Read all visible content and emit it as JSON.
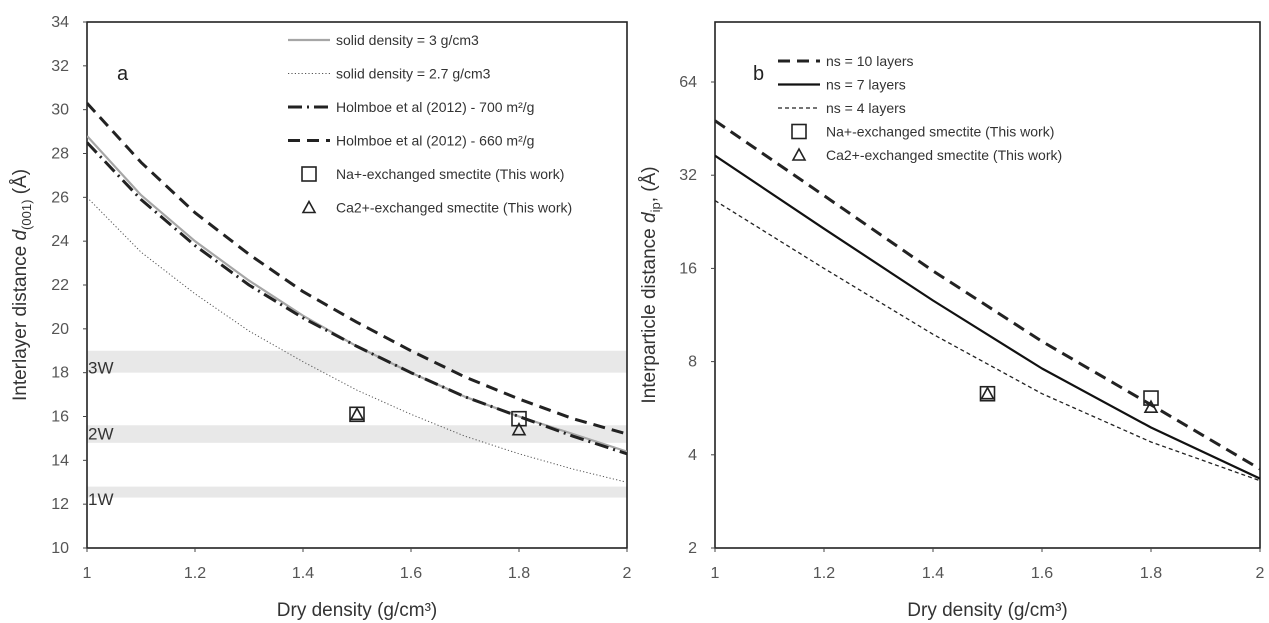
{
  "chart_data": [
    {
      "type": "line",
      "panel_label": "a",
      "xlabel": "Dry density (g/cm³)",
      "ylabel_parts": [
        "Interlayer distance ",
        "d",
        "(001)",
        " (Å)"
      ],
      "xlim": [
        1,
        2
      ],
      "ylim": [
        10,
        34
      ],
      "xticks": [
        1,
        1.2,
        1.4,
        1.6,
        1.8,
        2
      ],
      "xtick_labels": [
        "1",
        "1.2",
        "1.4",
        "1.6",
        "1.8",
        "2"
      ],
      "yticks": [
        10,
        12,
        14,
        16,
        18,
        20,
        22,
        24,
        26,
        28,
        30,
        32,
        34
      ],
      "ytick_labels": [
        "10",
        "12",
        "14",
        "16",
        "18",
        "20",
        "22",
        "24",
        "26",
        "28",
        "30",
        "32",
        "34"
      ],
      "legend_position": "top-right",
      "bands": [
        {
          "label": "3W",
          "range": [
            18,
            19
          ],
          "label_y": 18
        },
        {
          "label": "2W",
          "range": [
            14.8,
            15.6
          ],
          "label_y": 15
        },
        {
          "label": "1W",
          "range": [
            12.3,
            12.8
          ],
          "label_y": 12
        }
      ],
      "series": [
        {
          "name": "solid density = 3 g/cm3",
          "style": "solid-gray",
          "x": [
            1,
            1.1,
            1.2,
            1.3,
            1.4,
            1.5,
            1.6,
            1.7,
            1.8,
            1.9,
            2
          ],
          "y": [
            28.8,
            26.1,
            24,
            22.2,
            20.6,
            19.2,
            18,
            16.9,
            16,
            15.2,
            14.4
          ]
        },
        {
          "name": "solid density = 2.7 g/cm3",
          "style": "dotted",
          "x": [
            1,
            1.1,
            1.2,
            1.3,
            1.4,
            1.5,
            1.6,
            1.7,
            1.8,
            1.9,
            2
          ],
          "y": [
            26,
            23.5,
            21.6,
            19.9,
            18.5,
            17.2,
            16.1,
            15.1,
            14.3,
            13.6,
            13
          ]
        },
        {
          "name": "Holmboe et al (2012) - 700 m²/g",
          "style": "dashdot-thick",
          "x": [
            1,
            1.1,
            1.2,
            1.3,
            1.4,
            1.5,
            1.6,
            1.7,
            1.8,
            1.9,
            2
          ],
          "y": [
            28.5,
            25.9,
            23.8,
            22,
            20.5,
            19.2,
            18,
            16.9,
            16,
            15.1,
            14.3
          ]
        },
        {
          "name": "Holmboe et al (2012) - 660 m²/g",
          "style": "dashed-thick",
          "x": [
            1,
            1.1,
            1.2,
            1.3,
            1.4,
            1.5,
            1.6,
            1.7,
            1.8,
            1.9,
            2
          ],
          "y": [
            30.3,
            27.6,
            25.3,
            23.4,
            21.7,
            20.3,
            19,
            17.8,
            16.8,
            15.9,
            15.2
          ]
        }
      ],
      "markers": [
        {
          "name": "Na+-exchanged smectite (This work)",
          "shape": "square",
          "x": [
            1.5,
            1.8
          ],
          "y": [
            16.1,
            15.9
          ]
        },
        {
          "name": "Ca2+-exchanged smectite (This work)",
          "shape": "triangle",
          "x": [
            1.5,
            1.8
          ],
          "y": [
            16.1,
            15.4
          ]
        }
      ]
    },
    {
      "type": "line",
      "panel_label": "b",
      "xlabel": "Dry density (g/cm³)",
      "ylabel_parts": [
        "Interparticle distance ",
        "d",
        "ip",
        ", (Å)"
      ],
      "xlim": [
        1,
        2
      ],
      "ylim": [
        2,
        100
      ],
      "yscale": "log2",
      "xticks": [
        1,
        1.2,
        1.4,
        1.6,
        1.8,
        2
      ],
      "xtick_labels": [
        "1",
        "1.2",
        "1.4",
        "1.6",
        "1.8",
        "2"
      ],
      "yticks": [
        2,
        4,
        8,
        16,
        32,
        64
      ],
      "ytick_labels": [
        "2",
        "4",
        "8",
        "16",
        "32",
        "64"
      ],
      "legend_position": "top-center",
      "series": [
        {
          "name": "ns = 10 layers",
          "style": "dashed-thick",
          "x": [
            1,
            1.2,
            1.4,
            1.6,
            1.8,
            2
          ],
          "y": [
            48,
            27.5,
            15.7,
            9.3,
            5.8,
            3.6
          ]
        },
        {
          "name": "ns = 7 layers",
          "style": "solid-black",
          "x": [
            1,
            1.2,
            1.4,
            1.6,
            1.8,
            2
          ],
          "y": [
            37,
            21.5,
            12.6,
            7.6,
            4.9,
            3.35
          ]
        },
        {
          "name": "ns = 4 layers",
          "style": "dashed-thin",
          "x": [
            1,
            1.2,
            1.4,
            1.6,
            1.8,
            2
          ],
          "y": [
            26.5,
            16,
            9.8,
            6.3,
            4.4,
            3.3
          ]
        }
      ],
      "markers": [
        {
          "name": "Na+-exchanged smectite (This work)",
          "shape": "square",
          "x": [
            1.5,
            1.8
          ],
          "y": [
            6.3,
            6.1
          ]
        },
        {
          "name": "Ca2+-exchanged smectite (This work)",
          "shape": "triangle",
          "x": [
            1.5,
            1.8
          ],
          "y": [
            6.3,
            5.7
          ]
        }
      ]
    }
  ]
}
